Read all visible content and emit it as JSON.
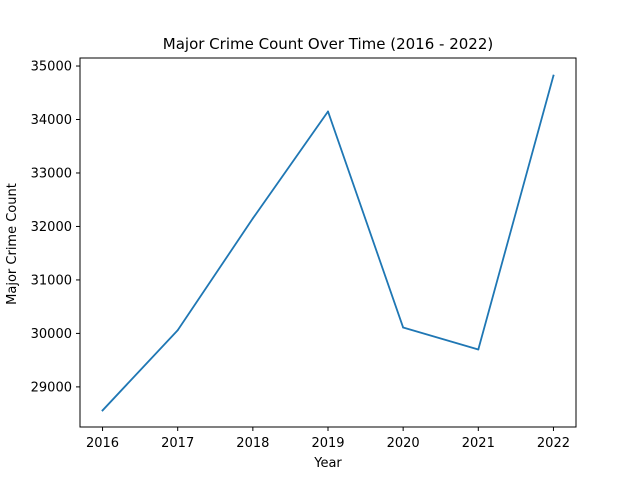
{
  "chart_data": {
    "type": "line",
    "title": "Major Crime Count Over Time (2016 - 2022)",
    "xlabel": "Year",
    "ylabel": "Major Crime Count",
    "x": [
      2016,
      2017,
      2018,
      2019,
      2020,
      2021,
      2022
    ],
    "series": [
      {
        "values": [
          28560,
          30060,
          32150,
          34150,
          30110,
          29700,
          34820
        ]
      }
    ],
    "xlim": [
      2015.7,
      2022.3
    ],
    "ylim": [
      28250,
      35150
    ],
    "x_ticks": [
      "2016",
      "2017",
      "2018",
      "2019",
      "2020",
      "2021",
      "2022"
    ],
    "y_ticks": [
      29000,
      30000,
      31000,
      32000,
      33000,
      34000,
      35000
    ],
    "grid": false,
    "line_color": "#1f77b4"
  }
}
